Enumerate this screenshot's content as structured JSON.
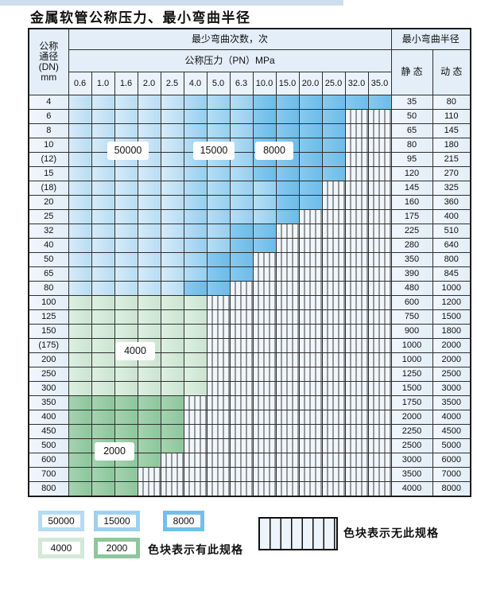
{
  "title": "金属软管公称压力、最小弯曲半径",
  "table": {
    "corner_header": [
      "公称",
      "通径",
      "(DN)",
      "mm"
    ],
    "bend_cycles_header": "最少弯曲次数，次",
    "pressure_header": "公称压力（PN）MPa",
    "radius_header": "最小弯曲半径",
    "static_header": "静 态",
    "dynamic_header": "动 态",
    "pressure_columns": [
      "0.6",
      "1.0",
      "1.6",
      "2.0",
      "2.5",
      "4.0",
      "5.0",
      "6.3",
      "10.0",
      "15.0",
      "20.0",
      "25.0",
      "32.0",
      "35.0"
    ],
    "cell_code_map": {
      "L": "50000",
      "M": "15000",
      "D": "8000",
      "G": "4000",
      "E": "2000",
      "S": "no-spec"
    },
    "rows": [
      {
        "dn": "4",
        "cells": "LLLLLMMMDDDDDD",
        "static": "35",
        "dynamic": "80"
      },
      {
        "dn": "6",
        "cells": "LLLLLMMMDDDDSS",
        "static": "50",
        "dynamic": "110"
      },
      {
        "dn": "8",
        "cells": "LLLLLMMMDDDDSS",
        "static": "65",
        "dynamic": "145"
      },
      {
        "dn": "10",
        "cells": "LLLLLMMMDDDDSS",
        "static": "80",
        "dynamic": "180"
      },
      {
        "dn": "(12)",
        "cells": "LLLLLMMMDDDDSS",
        "static": "95",
        "dynamic": "215"
      },
      {
        "dn": "15",
        "cells": "LLLLLMMMDDDDSS",
        "static": "120",
        "dynamic": "270"
      },
      {
        "dn": "(18)",
        "cells": "LLLLLMMMMDDSSS",
        "static": "145",
        "dynamic": "325"
      },
      {
        "dn": "20",
        "cells": "LLLLLMMMMDDSSS",
        "static": "160",
        "dynamic": "360"
      },
      {
        "dn": "25",
        "cells": "LLLLLMMMMDSSSS",
        "static": "175",
        "dynamic": "400"
      },
      {
        "dn": "32",
        "cells": "LLLLLMMDDSSSSS",
        "static": "225",
        "dynamic": "510"
      },
      {
        "dn": "40",
        "cells": "LLLLLMMDDSSSSS",
        "static": "280",
        "dynamic": "640"
      },
      {
        "dn": "50",
        "cells": "LLLLLMDDSSSSSS",
        "static": "350",
        "dynamic": "800"
      },
      {
        "dn": "65",
        "cells": "LLLLLMDDSSSSSS",
        "static": "390",
        "dynamic": "845"
      },
      {
        "dn": "80",
        "cells": "LLLLLDDSSSSSSS",
        "static": "480",
        "dynamic": "1000"
      },
      {
        "dn": "100",
        "cells": "GGGGGGSSSSSSSS",
        "static": "600",
        "dynamic": "1200"
      },
      {
        "dn": "125",
        "cells": "GGGGGGSSSSSSSS",
        "static": "750",
        "dynamic": "1500"
      },
      {
        "dn": "150",
        "cells": "GGGGGGSSSSSSSS",
        "static": "900",
        "dynamic": "1800"
      },
      {
        "dn": "(175)",
        "cells": "GGGGGGSSSSSSSS",
        "static": "1000",
        "dynamic": "2000"
      },
      {
        "dn": "200",
        "cells": "GGGGGGSSSSSSSS",
        "static": "1000",
        "dynamic": "2000"
      },
      {
        "dn": "250",
        "cells": "GGGGGGSSSSSSSS",
        "static": "1250",
        "dynamic": "2500"
      },
      {
        "dn": "300",
        "cells": "GGGGGGSSSSSSSS",
        "static": "1500",
        "dynamic": "3000"
      },
      {
        "dn": "350",
        "cells": "EEEEESSSSSSSSS",
        "static": "1750",
        "dynamic": "3500"
      },
      {
        "dn": "400",
        "cells": "EEEEESSSSSSSSS",
        "static": "2000",
        "dynamic": "4000"
      },
      {
        "dn": "450",
        "cells": "EEEEESSSSSSSSS",
        "static": "2250",
        "dynamic": "4500"
      },
      {
        "dn": "500",
        "cells": "EEEEESSSSSSSSS",
        "static": "2500",
        "dynamic": "5000"
      },
      {
        "dn": "600",
        "cells": "EEEESSSSSSSSSS",
        "static": "3000",
        "dynamic": "6000"
      },
      {
        "dn": "700",
        "cells": "EEESSSSSSSSSSS",
        "static": "3500",
        "dynamic": "7000"
      },
      {
        "dn": "800",
        "cells": "EEESSSSSSSSSSS",
        "static": "4000",
        "dynamic": "8000"
      }
    ]
  },
  "cell_labels": [
    {
      "text": "50000"
    },
    {
      "text": "15000"
    },
    {
      "text": "8000"
    },
    {
      "text": "4000"
    },
    {
      "text": "2000"
    }
  ],
  "legend": {
    "items": [
      {
        "value": "50000",
        "color": "#b5dcf3"
      },
      {
        "value": "15000",
        "color": "#9cd1f0"
      },
      {
        "value": "8000",
        "color": "#72c0ea"
      },
      {
        "value": "4000",
        "color": "#d3e8d7"
      },
      {
        "value": "2000",
        "color": "#8fc79d"
      }
    ],
    "has_spec_text": "色块表示有此规格",
    "no_spec_text": "色块表示无此规格"
  },
  "colors": {
    "blue_50000": "#b5dcf3",
    "blue_15000": "#9cd1f0",
    "blue_8000": "#72c0ea",
    "green_4000": "#d3e8d7",
    "green_2000": "#8fc79d",
    "striped_bg": "#f1f6fb",
    "grid_line": "#2e2e2e"
  }
}
